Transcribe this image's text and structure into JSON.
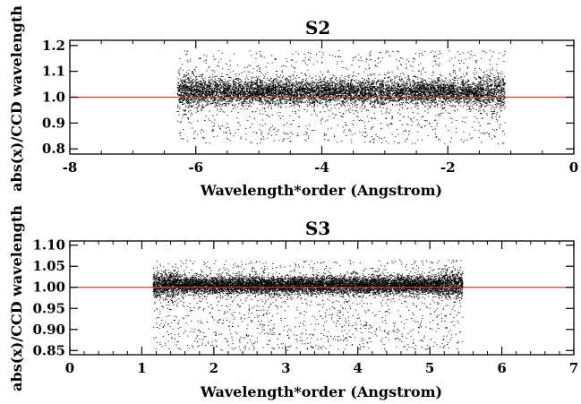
{
  "chart_data": [
    {
      "type": "scatter",
      "title": "S2",
      "xlabel": "Wavelength*order (Angstrom)",
      "ylabel": "abs(x)/CCD wavelength",
      "xlim": [
        -8,
        0
      ],
      "ylim": [
        0.78,
        1.22
      ],
      "xticks": [
        "-8",
        "-6",
        "-4",
        "-2",
        "0"
      ],
      "yticks": [
        "0.8",
        "0.9",
        "1.0",
        "1.1",
        "1.2"
      ],
      "reference_line": {
        "y": 1.0,
        "color": "#e03030"
      },
      "point_color": "#000000",
      "scatter": {
        "x_range": [
          -6.3,
          -1.1
        ],
        "core_center": 1.02,
        "core_spread": 0.035,
        "outlier_range": [
          0.82,
          1.18
        ],
        "points": 9000
      },
      "grid": false
    },
    {
      "type": "scatter",
      "title": "S3",
      "xlabel": "Wavelength*order (Angstrom)",
      "ylabel": "abs(x)/CCD wavelength",
      "xlim": [
        0,
        7
      ],
      "ylim": [
        0.84,
        1.11
      ],
      "xticks": [
        "0",
        "1",
        "2",
        "3",
        "4",
        "5",
        "6",
        "7"
      ],
      "yticks": [
        "0.85",
        "0.90",
        "0.95",
        "1.00",
        "1.05",
        "1.10"
      ],
      "reference_line": {
        "y": 1.0,
        "color": "#e03030"
      },
      "point_color": "#000000",
      "scatter": {
        "x_range": [
          1.15,
          5.45
        ],
        "core_center": 1.005,
        "core_spread": 0.015,
        "outlier_range": [
          0.85,
          1.065
        ],
        "points": 11000
      },
      "grid": false
    }
  ]
}
